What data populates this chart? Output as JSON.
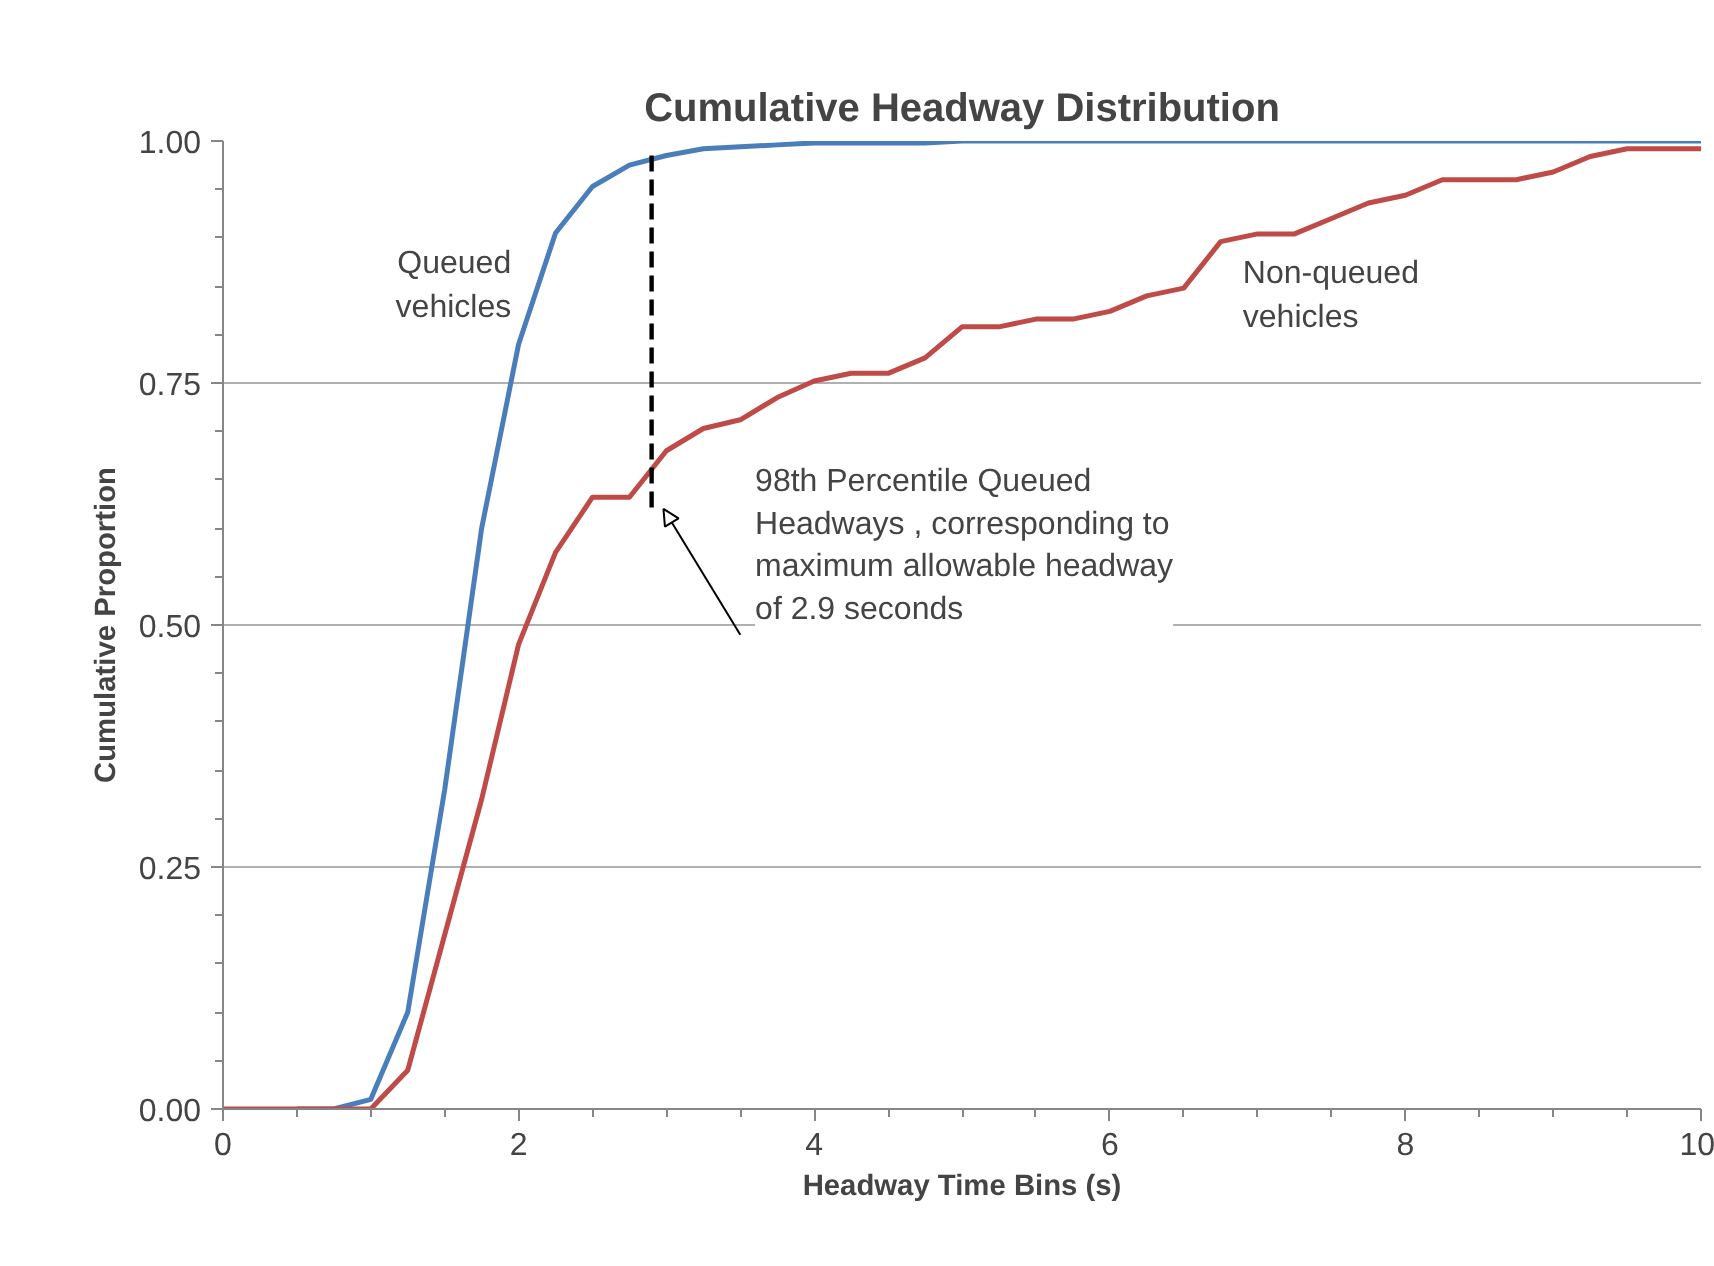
{
  "chart_data": {
    "type": "line",
    "title": "Cumulative Headway Distribution",
    "xlabel": "Headway Time Bins (s)",
    "ylabel": "Cumulative Proportion",
    "x": [
      0,
      0.25,
      0.5,
      0.75,
      1,
      1.25,
      1.5,
      1.75,
      2,
      2.25,
      2.5,
      2.75,
      3,
      3.25,
      3.5,
      3.75,
      4,
      4.25,
      4.5,
      4.75,
      5,
      5.25,
      5.5,
      5.75,
      6,
      6.25,
      6.5,
      6.75,
      7,
      7.25,
      7.5,
      7.75,
      8,
      8.25,
      8.5,
      8.75,
      9,
      9.25,
      9.5,
      9.75,
      10
    ],
    "series": [
      {
        "name": "Queued vehicles",
        "color": "#4a7ebb",
        "values": [
          null,
          null,
          0,
          0,
          0.01,
          0.1,
          0.33,
          0.6,
          0.79,
          0.905,
          0.953,
          0.975,
          0.985,
          0.992,
          0.994,
          0.996,
          0.998,
          0.998,
          0.998,
          0.998,
          1,
          1,
          1,
          1,
          1,
          1,
          1,
          1,
          1,
          1,
          1,
          1,
          1,
          1,
          1,
          1,
          1,
          1,
          1,
          1,
          1
        ]
      },
      {
        "name": "Non-queued vehicles",
        "color": "#be4b48",
        "values": [
          0,
          0,
          0,
          0,
          0,
          0.04,
          0.18,
          0.32,
          0.48,
          0.575,
          0.632,
          0.632,
          0.68,
          0.703,
          0.712,
          0.735,
          0.752,
          0.76,
          0.76,
          0.776,
          0.808,
          0.808,
          0.816,
          0.816,
          0.824,
          0.84,
          0.848,
          0.896,
          0.904,
          0.904,
          0.92,
          0.936,
          0.944,
          0.96,
          0.96,
          0.96,
          0.968,
          0.984,
          0.992,
          0.992,
          0.992
        ]
      },
      {
        "type": "line",
        "color": "#000000",
        "line_style": "dashed",
        "x": [
          2.9,
          2.9
        ],
        "values": [
          0.985,
          0.62
        ]
      }
    ],
    "annotations": [
      {
        "text": "98th Percentile Queued\nHeadways , corresponding to\nmaximum allowable headway\nof 2.9 seconds",
        "x": 2.9,
        "y": 0.62
      }
    ],
    "xlim": [
      0,
      10
    ],
    "ylim": [
      0,
      1
    ],
    "xticks": [
      0,
      2,
      4,
      6,
      8,
      10
    ],
    "yticks": [
      {
        "value": 0,
        "label": "0.00"
      },
      {
        "value": 0.25,
        "label": "0.25"
      },
      {
        "value": 0.5,
        "label": "0.50"
      },
      {
        "value": 0.75,
        "label": "0.75"
      },
      {
        "value": 1,
        "label": "1.00"
      }
    ],
    "grid": "y",
    "marker": "none",
    "line_style": "solid"
  }
}
